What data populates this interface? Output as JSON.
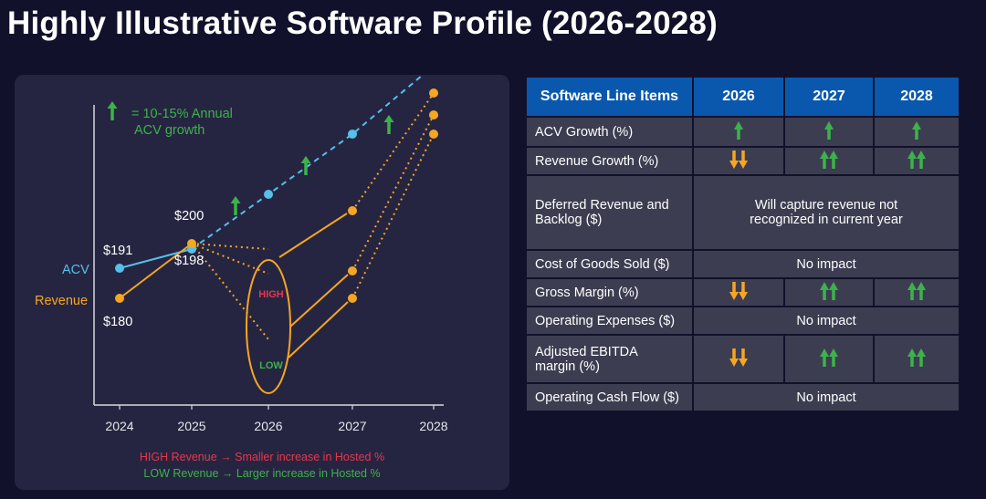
{
  "title": "Highly Illustrative Software Profile (2026-2028)",
  "colors": {
    "acv": "#55c0ea",
    "revenue": "#f5a623",
    "up_arrow": "#3cb34a",
    "down_arrow": "#f5a623",
    "high_label": "#e8364c",
    "low_label": "#3cb34a",
    "header_bg": "#0a58ad",
    "cell_bg": "#3d3d52"
  },
  "chart_data": {
    "type": "line",
    "x": [
      "2024",
      "2025",
      "2026",
      "2027",
      "2028"
    ],
    "series": [
      {
        "name": "ACV",
        "x": [
          "2024",
          "2025",
          "2026",
          "2027",
          "2028"
        ],
        "values": [
          191,
          198,
          218,
          240,
          265
        ],
        "style": "solid then dashed after 2025"
      },
      {
        "name": "Revenue",
        "x": [
          "2024",
          "2025"
        ],
        "values": [
          180,
          200
        ],
        "style": "solid"
      },
      {
        "name": "Revenue HIGH",
        "x": [
          "2025",
          "2026",
          "2027",
          "2028"
        ],
        "values": [
          200,
          198,
          212,
          255
        ],
        "style": "scenario"
      },
      {
        "name": "Revenue LOW",
        "x": [
          "2025",
          "2026",
          "2027",
          "2028"
        ],
        "values": [
          200,
          165,
          180,
          240
        ],
        "style": "scenario"
      }
    ],
    "point_labels": [
      "$191",
      "$198",
      "$180",
      "$200"
    ],
    "series_labels": [
      "ACV",
      "Revenue"
    ],
    "scenario_labels": {
      "high": "HIGH",
      "low": "LOW"
    },
    "legend_note": {
      "icon": "up-arrow-icon",
      "line1": "= 10-15% Annual",
      "line2": "ACV growth"
    },
    "footnotes": [
      "HIGH Revenue → Smaller increase in Hosted %",
      "LOW Revenue → Larger increase in Hosted %"
    ],
    "ylim": [
      140,
      275
    ],
    "grid": false
  },
  "table": {
    "headers": [
      "Software Line Items",
      "2026",
      "2027",
      "2028"
    ],
    "rows": [
      {
        "label": "ACV Growth (%)",
        "cells": [
          "up",
          "up",
          "up"
        ]
      },
      {
        "label": "Revenue Growth (%)",
        "cells": [
          "down2",
          "up2",
          "up2"
        ]
      },
      {
        "label": "Deferred Revenue and Backlog ($)",
        "merged": "Will capture revenue not recognized in current year"
      },
      {
        "label": "Cost of Goods Sold ($)",
        "merged": "No impact"
      },
      {
        "label": "Gross Margin (%)",
        "cells": [
          "down2",
          "up2",
          "up2"
        ]
      },
      {
        "label": "Operating Expenses ($)",
        "merged": "No impact"
      },
      {
        "label": "Adjusted EBITDA margin (%)",
        "cells": [
          "down2",
          "up2",
          "up2"
        ]
      },
      {
        "label": "Operating Cash Flow ($)",
        "merged": "No impact"
      }
    ]
  }
}
